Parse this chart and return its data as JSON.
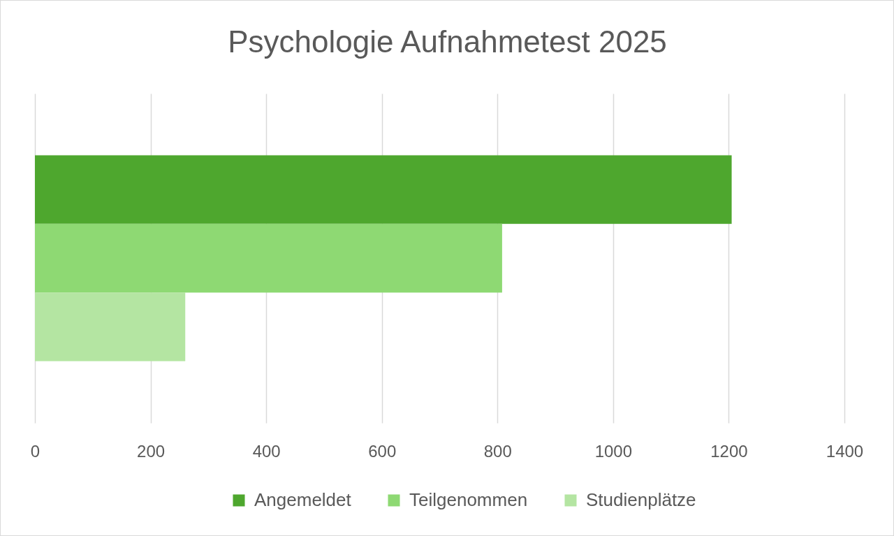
{
  "chart_data": {
    "type": "bar",
    "title": "Psychologie Aufnahmetest 2025",
    "orientation": "horizontal",
    "categories": [
      null
    ],
    "series": [
      {
        "name": "Angemeldet",
        "color": "#4ea72e",
        "values": [
          1205
        ]
      },
      {
        "name": "Teilgenommen",
        "color": "#8ed973",
        "values": [
          808
        ]
      },
      {
        "name": "Studienplätze",
        "color": "#b4e5a2",
        "values": [
          260
        ]
      }
    ],
    "xlim": [
      0,
      1400
    ],
    "xticks": [
      0,
      200,
      400,
      600,
      800,
      1000,
      1200,
      1400
    ],
    "grid": "x",
    "legend": "bottom",
    "tick_labels": "x"
  }
}
